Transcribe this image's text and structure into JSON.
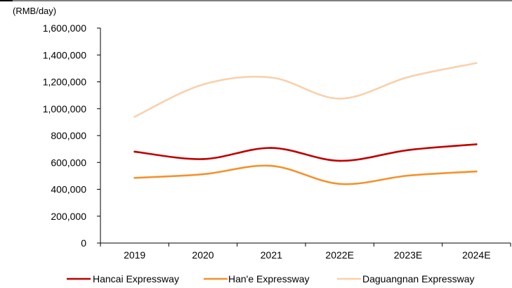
{
  "chart_data": {
    "type": "line",
    "unit_label": "(RMB/day)",
    "categories": [
      "2019",
      "2020",
      "2021",
      "2022E",
      "2023E",
      "2024E"
    ],
    "ylim": [
      0,
      1600000
    ],
    "yticks": [
      0,
      200000,
      400000,
      600000,
      800000,
      1000000,
      1200000,
      1400000,
      1600000
    ],
    "ytick_labels": [
      "0",
      "200,000",
      "400,000",
      "600,000",
      "800,000",
      "1,000,000",
      "1,200,000",
      "1,400,000",
      "1,600,000"
    ],
    "grid": false,
    "legend_position": "bottom",
    "series": [
      {
        "name": "Hancai Expressway",
        "color": "#c00000",
        "values": [
          680000,
          625000,
          708000,
          612000,
          692000,
          735000
        ]
      },
      {
        "name": "Han'e Expressway",
        "color": "#f4922b",
        "values": [
          485000,
          512000,
          575000,
          440000,
          502000,
          533000
        ]
      },
      {
        "name": "Daguangnan Expressway",
        "color": "#f8d1ac",
        "values": [
          940000,
          1180000,
          1232000,
          1075000,
          1235000,
          1340000
        ]
      }
    ]
  }
}
